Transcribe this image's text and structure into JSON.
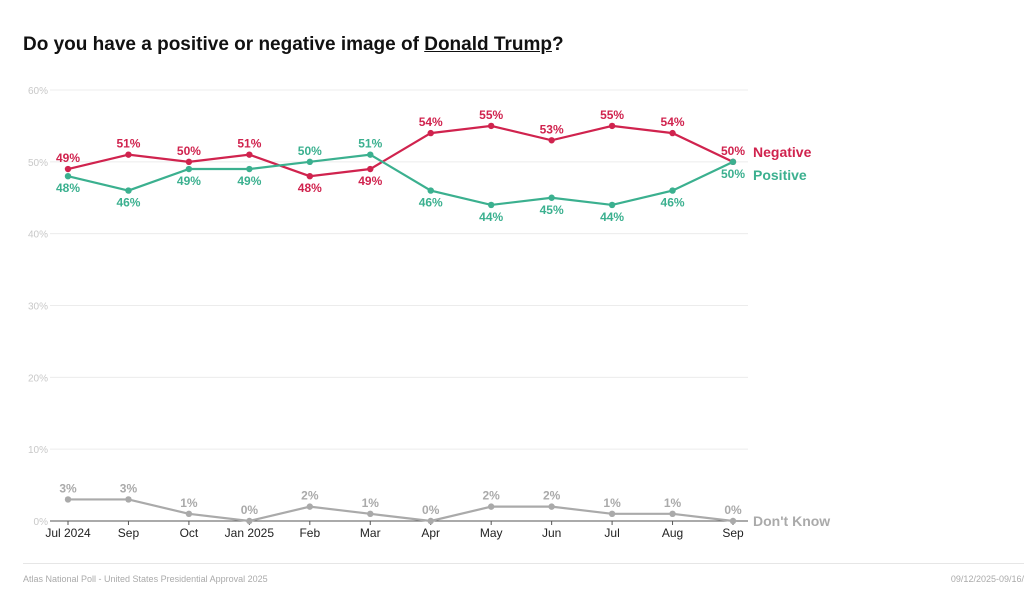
{
  "title": {
    "prefix": "Do you have a positive or negative image of ",
    "subject": "Donald Trump",
    "suffix": "?"
  },
  "footer": {
    "source": "Atlas National Poll - United States Presidential Approval 2025",
    "dates": "09/12/2025-09/16/"
  },
  "chart_data": {
    "type": "line",
    "title": "Do you have a positive or negative image of Donald Trump?",
    "categories": [
      "Jul 2024",
      "Sep",
      "Oct",
      "Jan 2025",
      "Feb",
      "Mar",
      "Apr",
      "May",
      "Jun",
      "Jul",
      "Aug",
      "Sep"
    ],
    "ylim": [
      0,
      60
    ],
    "yticks": [
      0,
      10,
      20,
      30,
      40,
      50,
      60
    ],
    "ytick_labels": [
      "0%",
      "10%",
      "20%",
      "30%",
      "40%",
      "50%",
      "60%"
    ],
    "grid": true,
    "series": [
      {
        "name": "Negative",
        "color": "#d0234e",
        "values": [
          49,
          51,
          50,
          51,
          48,
          49,
          54,
          55,
          53,
          55,
          54,
          50
        ],
        "label_pos": [
          "up",
          "up",
          "up",
          "up",
          "down",
          "down",
          "up",
          "up",
          "up",
          "up",
          "up",
          "up"
        ]
      },
      {
        "name": "Positive",
        "color": "#3bb08f",
        "values": [
          48,
          46,
          49,
          49,
          50,
          51,
          46,
          44,
          45,
          44,
          46,
          50
        ],
        "label_pos": [
          "down",
          "down",
          "down",
          "down",
          "up",
          "up",
          "down",
          "down",
          "down",
          "down",
          "down",
          "down"
        ]
      },
      {
        "name": "Don't Know",
        "color": "#aaaaaa",
        "values": [
          3,
          3,
          1,
          0,
          2,
          1,
          0,
          2,
          2,
          1,
          1,
          0
        ],
        "label_pos": [
          "up",
          "up",
          "up",
          "up",
          "up",
          "up",
          "up",
          "up",
          "up",
          "up",
          "up",
          "up"
        ]
      }
    ]
  }
}
